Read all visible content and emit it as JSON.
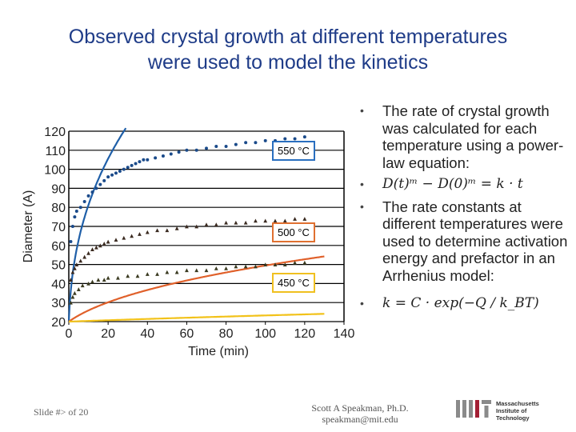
{
  "slide": {
    "title_line1": "Observed crystal growth at different temperatures",
    "title_line2": "were used to model the kinetics",
    "bullets": [
      "The rate of crystal growth was calculated for each temperature using a power-law equation:",
      "D(t)ᵐ − D(0)ᵐ = k · t",
      "The rate constants at different temperatures were used to determine activation energy and prefactor in an Arrhenius model:",
      "k = C · exp(−Q / k_BT)"
    ],
    "footer_left": "Slide #> of 20",
    "footer_author": "Scott A Speakman, Ph.D.",
    "footer_email": "speakman@mit.edu",
    "logo_line1": "Massachusetts",
    "logo_line2": "Institute of",
    "logo_line3": "Technology",
    "logo_color": "#a31f34"
  },
  "chart_data": {
    "type": "scatter",
    "title": "",
    "xlabel": "Time (min)",
    "ylabel": "Diameter (A)",
    "xlim": [
      0,
      140
    ],
    "ylim": [
      20,
      120
    ],
    "xticks": [
      0,
      20,
      40,
      60,
      80,
      100,
      120,
      140
    ],
    "yticks": [
      20,
      30,
      40,
      50,
      60,
      70,
      80,
      90,
      100,
      110,
      120
    ],
    "series": [
      {
        "name": "550 °C",
        "marker_color": "#1a4a8a",
        "fit_color": "#1f5fa8",
        "box_color": "#2a6fbf",
        "d0": 20,
        "k": 9000,
        "m": 2.6,
        "points": [
          [
            1,
            62
          ],
          [
            2,
            70
          ],
          [
            3,
            75
          ],
          [
            4,
            78
          ],
          [
            6,
            80
          ],
          [
            8,
            83
          ],
          [
            10,
            86
          ],
          [
            12,
            88
          ],
          [
            14,
            90
          ],
          [
            16,
            92
          ],
          [
            18,
            94
          ],
          [
            20,
            96
          ],
          [
            22,
            97
          ],
          [
            24,
            98
          ],
          [
            26,
            99
          ],
          [
            28,
            100
          ],
          [
            30,
            101
          ],
          [
            32,
            102
          ],
          [
            34,
            103
          ],
          [
            36,
            104
          ],
          [
            38,
            105
          ],
          [
            40,
            105
          ],
          [
            44,
            106
          ],
          [
            48,
            107
          ],
          [
            52,
            108
          ],
          [
            56,
            109
          ],
          [
            60,
            110
          ],
          [
            65,
            110
          ],
          [
            70,
            111
          ],
          [
            75,
            112
          ],
          [
            80,
            112
          ],
          [
            85,
            113
          ],
          [
            90,
            114
          ],
          [
            95,
            114
          ],
          [
            100,
            115
          ],
          [
            105,
            115
          ],
          [
            110,
            116
          ],
          [
            115,
            116
          ],
          [
            120,
            117
          ]
        ]
      },
      {
        "name": "500 °C",
        "marker_color": "#3a2a20",
        "fit_color": "#e0602a",
        "box_color": "#e07030",
        "d0": 20,
        "k": 230,
        "m": 2.6,
        "points": [
          [
            1,
            42
          ],
          [
            2,
            46
          ],
          [
            3,
            48
          ],
          [
            4,
            50
          ],
          [
            6,
            52
          ],
          [
            8,
            54
          ],
          [
            10,
            56
          ],
          [
            12,
            58
          ],
          [
            14,
            59
          ],
          [
            16,
            60
          ],
          [
            18,
            61
          ],
          [
            20,
            62
          ],
          [
            24,
            63
          ],
          [
            28,
            64
          ],
          [
            32,
            65
          ],
          [
            36,
            66
          ],
          [
            40,
            67
          ],
          [
            45,
            68
          ],
          [
            50,
            68
          ],
          [
            55,
            69
          ],
          [
            60,
            70
          ],
          [
            65,
            70
          ],
          [
            70,
            71
          ],
          [
            75,
            71
          ],
          [
            80,
            72
          ],
          [
            85,
            72
          ],
          [
            90,
            72
          ],
          [
            95,
            73
          ],
          [
            100,
            73
          ],
          [
            105,
            73
          ],
          [
            110,
            73
          ],
          [
            115,
            74
          ],
          [
            120,
            74
          ]
        ]
      },
      {
        "name": "450 °C",
        "marker_color": "#3a3a20",
        "fit_color": "#f2c21a",
        "box_color": "#f0c020",
        "d0": 20,
        "k": 11.5,
        "m": 2.6,
        "points": [
          [
            1,
            30
          ],
          [
            2,
            33
          ],
          [
            3,
            35
          ],
          [
            5,
            37
          ],
          [
            7,
            39
          ],
          [
            10,
            40
          ],
          [
            12,
            41
          ],
          [
            15,
            42
          ],
          [
            18,
            42
          ],
          [
            20,
            43
          ],
          [
            25,
            43
          ],
          [
            30,
            44
          ],
          [
            35,
            44
          ],
          [
            40,
            45
          ],
          [
            45,
            45
          ],
          [
            50,
            46
          ],
          [
            55,
            46
          ],
          [
            60,
            47
          ],
          [
            65,
            47
          ],
          [
            70,
            47
          ],
          [
            75,
            48
          ],
          [
            80,
            48
          ],
          [
            85,
            49
          ],
          [
            90,
            49
          ],
          [
            95,
            49
          ],
          [
            100,
            50
          ],
          [
            105,
            50
          ],
          [
            110,
            50
          ],
          [
            115,
            51
          ],
          [
            120,
            51
          ]
        ]
      }
    ]
  }
}
